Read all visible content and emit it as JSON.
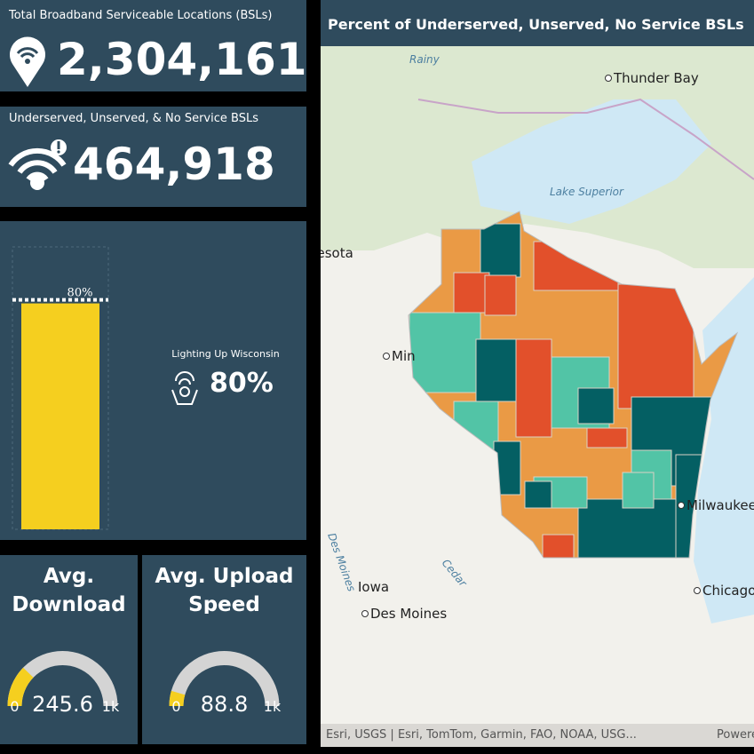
{
  "panels": {
    "total": {
      "title": "Total Broadband Serviceable Locations (BSLs)",
      "value": "2,304,161"
    },
    "underserved": {
      "title": "Underserved, Unserved, & No Service BSLs",
      "value": "464,918"
    }
  },
  "progress": {
    "value": 80,
    "value_label": "80%",
    "range": [
      0,
      100
    ],
    "caption": "Lighting Up Wisconsin",
    "indicator": "80%",
    "color": "#f5cf1f"
  },
  "gauges": [
    {
      "title": "Avg. Download Speed",
      "value": 245.6,
      "min": 0,
      "max": {
        "value": 1000,
        "label": "1k"
      },
      "color": "#f5cf1f"
    },
    {
      "title": "Avg. Upload Speed",
      "value": 88.8,
      "min": 0,
      "max": {
        "value": 1000,
        "label": "1k"
      },
      "color": "#f5cf1f"
    }
  ],
  "map": {
    "title": "Percent of Underserved, Unserved, No Service BSLs",
    "labels": [
      "Thunder Bay",
      "Rainy",
      "Lake Superior",
      "nesota",
      "Min",
      "Milwaukee",
      "Chicago",
      "Iowa",
      "Des Moines",
      "Des Moines",
      "Cedar"
    ],
    "attribution": "Esri, USGS | Esri, TomTom, Garmin, FAO, NOAA, USG...",
    "powered": "Powered by Esri"
  }
}
